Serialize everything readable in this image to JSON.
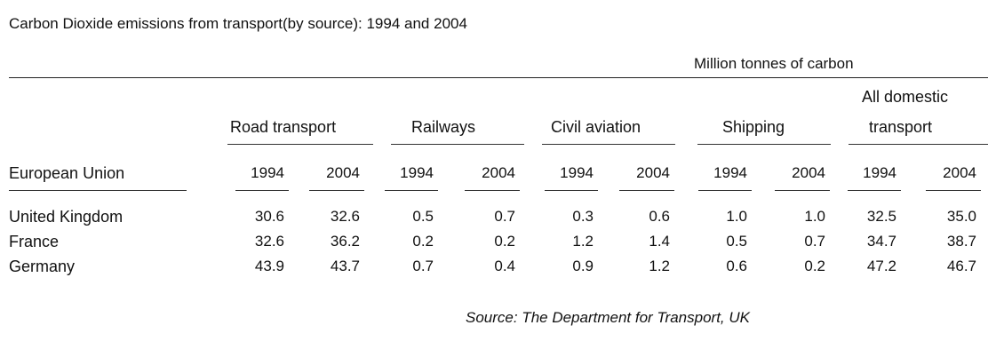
{
  "title": "Carbon Dioxide emissions from transport(by source): 1994 and 2004",
  "units": "Million tonnes of carbon",
  "row_header": "European Union",
  "groups": [
    {
      "label": "Road transport"
    },
    {
      "label": "Railways"
    },
    {
      "label": "Civil aviation"
    },
    {
      "label": "Shipping"
    },
    {
      "label_line1": "All domestic",
      "label_line2": "transport"
    }
  ],
  "years": [
    "1994",
    "2004"
  ],
  "rows": [
    {
      "country": "United Kingdom",
      "values": [
        "30.6",
        "32.6",
        "0.5",
        "0.7",
        "0.3",
        "0.6",
        "1.0",
        "1.0",
        "32.5",
        "35.0"
      ]
    },
    {
      "country": "France",
      "values": [
        "32.6",
        "36.2",
        "0.2",
        "0.2",
        "1.2",
        "1.4",
        "0.5",
        "0.7",
        "34.7",
        "38.7"
      ]
    },
    {
      "country": "Germany",
      "values": [
        "43.9",
        "43.7",
        "0.7",
        "0.4",
        "0.9",
        "1.2",
        "0.6",
        "0.2",
        "47.2",
        "46.7"
      ]
    }
  ],
  "source": "Source: The Department for Transport, UK"
}
